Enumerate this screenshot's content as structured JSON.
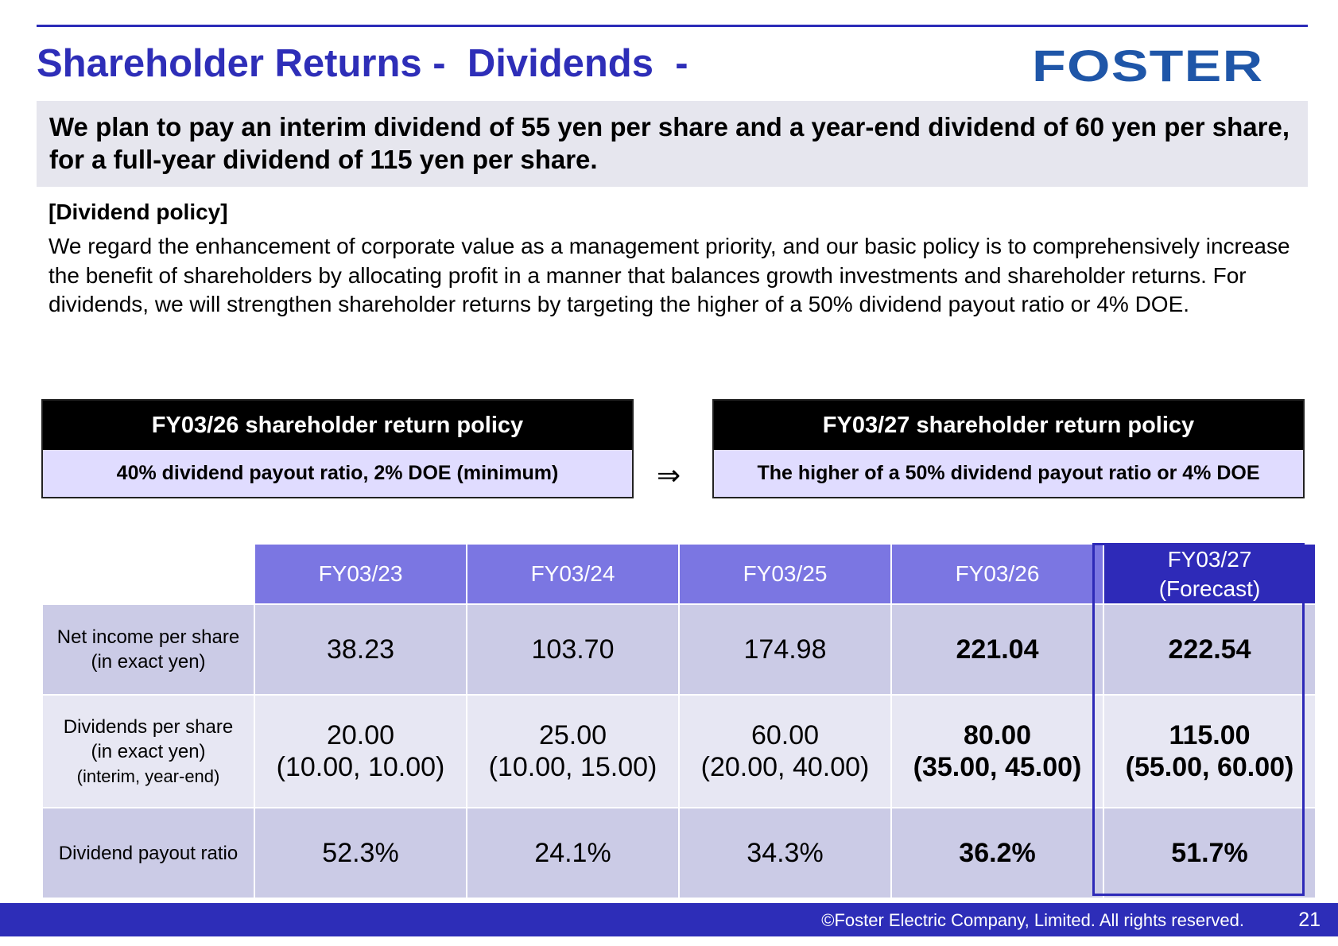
{
  "header": {
    "title": "Shareholder Returns -  Dividends  -",
    "logo_text": "FOSTER"
  },
  "summary": {
    "text": "We plan to pay an interim dividend of 55 yen per share and a year-end dividend of 60 yen per share, for a full-year dividend of 115 yen per share."
  },
  "policy": {
    "heading": "[Dividend policy]",
    "body": "We regard the enhancement of corporate value as a management priority, and our basic policy is to comprehensively increase the benefit of shareholders by allocating profit in a manner that balances growth investments and shareholder returns. For dividends, we will strengthen shareholder returns by targeting the higher of a 50% dividend payout ratio or 4% DOE."
  },
  "policy_boxes": {
    "current": {
      "title": "FY03/26 shareholder return policy",
      "body": "40% dividend payout ratio, 2% DOE (minimum)"
    },
    "arrow": "⇒",
    "next": {
      "title": "FY03/27 shareholder return policy",
      "body": "The higher of a 50% dividend payout ratio or 4% DOE"
    }
  },
  "table": {
    "years": [
      "FY03/23",
      "FY03/24",
      "FY03/25",
      "FY03/26",
      "FY03/27"
    ],
    "forecast_label": "(Forecast)",
    "rows": [
      {
        "label_line1": "Net income per share",
        "label_line2": "(in exact yen)",
        "values": [
          "38.23",
          "103.70",
          "174.98",
          "221.04",
          "222.54"
        ]
      },
      {
        "label_line1": "Dividends per share",
        "label_line2": "(in exact yen)",
        "label_line3": "(interim, year-end)",
        "values": [
          "20.00",
          "25.00",
          "60.00",
          "80.00",
          "115.00"
        ],
        "breakdown": [
          "(10.00, 10.00)",
          "(10.00, 15.00)",
          "(20.00, 40.00)",
          "(35.00, 45.00)",
          "(55.00, 60.00)"
        ]
      },
      {
        "label_line1": "Dividend payout ratio",
        "values": [
          "52.3%",
          "24.1%",
          "34.3%",
          "36.2%",
          "51.7%"
        ]
      }
    ]
  },
  "footer": {
    "copyright": "©Foster Electric Company, Limited. All rights reserved.",
    "page_number": "21"
  },
  "colors": {
    "title_blue": "#2e2eb8",
    "logo_blue": "#1f56a8",
    "header_purple": "#7b76e2",
    "forecast_blue": "#2e2ab8",
    "row_lavender": "#cbcbe6",
    "row_light": "#e7e7f3",
    "policy_box_fill": "#e0dcff",
    "footer_blue": "#2d2db8"
  }
}
